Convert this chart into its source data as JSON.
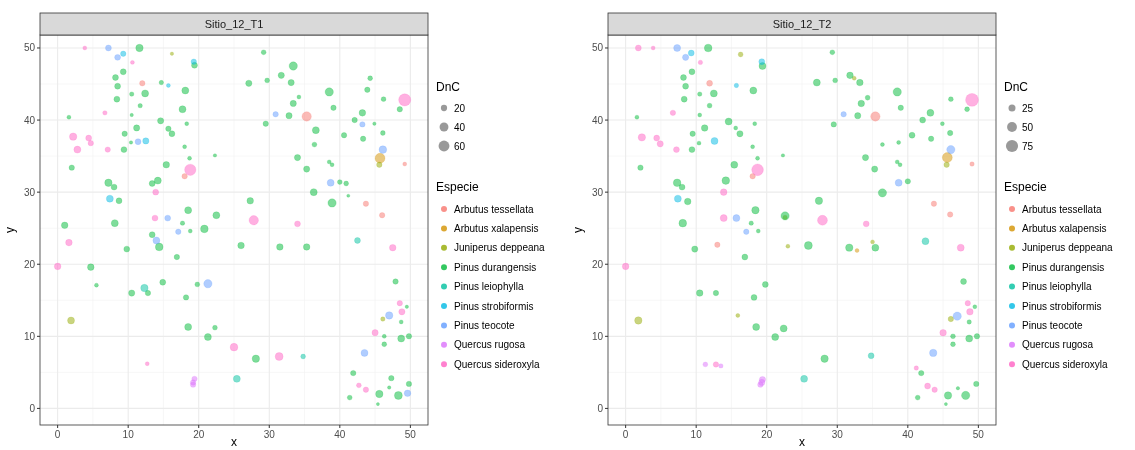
{
  "chart_data": [
    {
      "type": "bubble",
      "title": "Sitio_12_T1",
      "xlabel": "x",
      "ylabel": "y",
      "legend_title": "Especie",
      "annotations": [
        "DnC"
      ],
      "size_legend": [
        20,
        40,
        60
      ],
      "xlim": [
        -2.5,
        52.5
      ],
      "ylim": [
        -2.3,
        51.8
      ],
      "xticks": [
        0,
        10,
        20,
        30,
        40,
        50
      ],
      "yticks": [
        0,
        10,
        20,
        30,
        40,
        50
      ],
      "grid": true,
      "legend": "right",
      "series": [
        {
          "name": "Arbutus tessellata",
          "color": "#f8766d",
          "x": [
            12,
            18,
            35.3,
            43.7,
            46,
            49.2
          ],
          "values": [
            45.1,
            32.2,
            40.5,
            28.4,
            26.8,
            33.9
          ],
          "sizes": [
            15,
            15,
            45,
            15,
            15,
            8
          ]
        },
        {
          "name": "Arbutus xalapensis",
          "color": "#d39200",
          "x": [
            45.7
          ],
          "values": [
            34.7
          ],
          "sizes": [
            50
          ]
        },
        {
          "name": "Juniperus deppeana",
          "color": "#93aa00",
          "x": [
            16.2,
            1.9,
            45.6,
            46.1
          ],
          "values": [
            49.2,
            12.2,
            33.8,
            12.4
          ],
          "sizes": [
            6,
            25,
            15,
            10
          ]
        },
        {
          "name": "Pinus durangensis",
          "color": "#00ba38",
          "x": [
            11.6,
            19.4,
            9.3,
            8.2,
            14.7,
            8.5,
            10.5,
            12.4,
            18.1,
            8.4,
            11.7,
            17.7,
            1.6,
            10.5,
            14.6,
            18.3,
            11.2,
            15.7,
            16.2,
            9.5,
            10.4,
            9.4,
            18,
            18.7,
            22.3,
            2,
            15.4,
            7.2,
            8,
            13.4,
            14.2,
            8.7,
            18.5,
            22.5,
            17.7,
            18.8,
            20.8,
            1,
            8.1,
            13.4,
            14.4,
            9.8,
            26,
            16.9,
            4.7,
            5.5,
            10.5,
            12.8,
            14.9,
            19.8,
            18.2,
            18.5,
            22.3,
            21.3,
            29.2,
            33.4,
            31.7,
            27.1,
            29.7,
            33.1,
            44.3,
            38.5,
            43.9,
            34.2,
            46.2,
            33.4,
            39.1,
            48.5,
            32.8,
            29.5,
            43.2,
            42.1,
            44.9,
            36.6,
            46.1,
            40.6,
            43.3,
            36.4,
            34,
            38.5,
            38.9,
            35.3,
            40,
            40.9,
            36.3,
            41.2,
            27.3,
            38.9,
            31.5,
            35.3,
            47.9,
            49.5,
            48.7,
            46.3,
            48.7,
            49.8,
            46.3,
            28.1,
            41.9,
            47.3,
            49.8,
            47,
            45.6,
            48.3,
            41.4,
            45.4
          ],
          "values": [
            50,
            47.6,
            46.7,
            45.9,
            45.2,
            44.7,
            43.6,
            43.7,
            44.1,
            42.9,
            42,
            41.5,
            40.4,
            40.7,
            39.9,
            39.5,
            38.9,
            38.8,
            38.1,
            38.1,
            36.9,
            35.9,
            36.3,
            34.7,
            35.1,
            33.4,
            33.8,
            31.3,
            30.7,
            31.2,
            31.6,
            28.8,
            27.5,
            26.8,
            25.7,
            24.6,
            24.9,
            25.4,
            25.7,
            24.1,
            22.4,
            22.1,
            22.6,
            21,
            19.6,
            17.1,
            16,
            16,
            17.5,
            17.2,
            15.4,
            11.3,
            11.2,
            9.9,
            49.4,
            47.5,
            46.2,
            45.1,
            45.5,
            45.2,
            45.8,
            43.9,
            44.2,
            43.2,
            42.9,
            42.3,
            41.7,
            41.5,
            40.6,
            39.5,
            41,
            40,
            39.5,
            38.6,
            38.2,
            37.9,
            37.4,
            36.6,
            34.8,
            34.2,
            33.8,
            33.2,
            31.4,
            31.2,
            30,
            29.5,
            28.8,
            28.5,
            22.4,
            22.4,
            17.6,
            14.1,
            12,
            10,
            9.7,
            10,
            8.9,
            6.9,
            4.9,
            4.2,
            3.4,
            2.9,
            2,
            1.8,
            1.5,
            0.6
          ],
          "sizes": [
            28,
            18,
            18,
            18,
            10,
            18,
            10,
            25,
            25,
            18,
            10,
            25,
            8,
            6,
            20,
            8,
            20,
            15,
            18,
            15,
            6,
            18,
            8,
            8,
            6,
            15,
            22,
            28,
            18,
            18,
            25,
            18,
            25,
            25,
            10,
            8,
            30,
            22,
            25,
            18,
            30,
            18,
            22,
            15,
            22,
            8,
            20,
            15,
            18,
            12,
            15,
            25,
            12,
            25,
            12,
            35,
            20,
            20,
            12,
            20,
            12,
            35,
            15,
            8,
            12,
            20,
            15,
            15,
            20,
            15,
            22,
            15,
            6,
            25,
            12,
            15,
            15,
            12,
            20,
            8,
            8,
            20,
            12,
            12,
            25,
            5,
            22,
            35,
            22,
            22,
            15,
            6,
            8,
            8,
            25,
            15,
            12,
            28,
            15,
            15,
            15,
            6,
            28,
            32,
            12,
            5
          ]
        },
        {
          "name": "Pinus leiophylla",
          "color": "#00c19f",
          "x": [
            12.3,
            25.4,
            42.5,
            34.8
          ],
          "values": [
            16.7,
            4.1,
            23.3,
            7.2
          ],
          "sizes": [
            28,
            25,
            18,
            12
          ]
        },
        {
          "name": "Pinus strobiformis",
          "color": "#00b9e3",
          "x": [
            9.3,
            19.3,
            15.7,
            12.5,
            7.4
          ],
          "values": [
            49.2,
            48.1,
            44.8,
            37.1,
            29.1
          ],
          "sizes": [
            15,
            15,
            8,
            20,
            25
          ]
        },
        {
          "name": "Pinus teocote",
          "color": "#619cff",
          "x": [
            7.2,
            8.5,
            11.4,
            15.6,
            17.1,
            14,
            21.3,
            30.9,
            43.2,
            46.1,
            38.7,
            47,
            43.5,
            49.6
          ],
          "values": [
            50,
            48.7,
            37,
            26.4,
            24.5,
            23.3,
            17.3,
            40.8,
            39.4,
            35.9,
            31.3,
            12.9,
            7.7,
            2.1
          ],
          "sizes": [
            18,
            18,
            18,
            18,
            15,
            25,
            35,
            15,
            15,
            30,
            25,
            28,
            25,
            22
          ]
        },
        {
          "name": "Quercus rugosa",
          "color": "#db72fb",
          "x": [
            19.4,
            19.2,
            19.2
          ],
          "values": [
            4.1,
            3.6,
            3.3
          ],
          "sizes": [
            15,
            15,
            15
          ]
        },
        {
          "name": "Quercus sideroxyla",
          "color": "#ff61c3",
          "x": [
            3.85,
            10.6,
            6.7,
            2.2,
            4.4,
            4.7,
            2.8,
            7.1,
            18.8,
            13.9,
            13.8,
            1.6,
            0,
            25,
            12.7,
            49.2,
            27.8,
            34,
            47.5,
            48.5,
            48.8,
            45,
            31.4,
            42.7,
            43.7
          ],
          "values": [
            50,
            48,
            41,
            37.7,
            37.5,
            36.8,
            35.9,
            35.9,
            33.1,
            30,
            26.4,
            23,
            19.7,
            8.5,
            6.2,
            42.8,
            26.1,
            25.6,
            22.3,
            14.6,
            13.4,
            10.5,
            7.2,
            3.2,
            2.6
          ],
          "sizes": [
            8,
            8,
            10,
            28,
            18,
            15,
            25,
            15,
            65,
            18,
            18,
            22,
            22,
            30,
            8,
            75,
            45,
            18,
            22,
            15,
            20,
            20,
            32,
            12,
            15
          ]
        }
      ]
    },
    {
      "type": "bubble",
      "title": "Sitio_12_T2",
      "xlabel": "x",
      "ylabel": "y",
      "legend_title": "Especie",
      "annotations": [
        "DnC"
      ],
      "size_legend": [
        25,
        50,
        75
      ],
      "xlim": [
        -2.5,
        52.5
      ],
      "ylim": [
        -2.3,
        51.8
      ],
      "xticks": [
        0,
        10,
        20,
        30,
        40,
        50
      ],
      "yticks": [
        0,
        10,
        20,
        30,
        40,
        50
      ],
      "grid": true,
      "legend": "right",
      "series": [
        {
          "name": "Arbutus tessellata",
          "color": "#f8766d",
          "x": [
            11.9,
            18,
            13,
            35.4,
            43.7,
            46,
            49.1
          ],
          "values": [
            45.1,
            32.2,
            22.7,
            40.5,
            28.4,
            26.9,
            33.9
          ],
          "sizes": [
            18,
            15,
            15,
            45,
            15,
            15,
            10
          ]
        },
        {
          "name": "Arbutus xalapensis",
          "color": "#d39200",
          "x": [
            45.6,
            32.8
          ],
          "values": [
            34.8,
            21.9
          ],
          "sizes": [
            50,
            8
          ]
        },
        {
          "name": "Juniperus deppeana",
          "color": "#93aa00",
          "x": [
            16.3,
            22.6,
            23,
            1.8,
            15.9,
            32.4,
            45.5,
            35,
            46.1
          ],
          "values": [
            49.1,
            26.5,
            22.5,
            12.2,
            12.9,
            45.8,
            33.8,
            23.1,
            12.4
          ],
          "sizes": [
            12,
            10,
            8,
            28,
            8,
            8,
            15,
            8,
            15
          ]
        },
        {
          "name": "Pinus durangensis",
          "color": "#00ba38",
          "x": [
            11.7,
            19.4,
            9.4,
            8.2,
            8.5,
            10.5,
            12.5,
            18.1,
            8.3,
            11.9,
            1.6,
            10.5,
            14.6,
            18.3,
            11.2,
            15.6,
            16.2,
            9.5,
            10.4,
            9.4,
            18,
            18.7,
            22.3,
            2.1,
            15.4,
            7.3,
            8,
            14.2,
            8.8,
            18.4,
            22.6,
            17.8,
            18.8,
            8.1,
            25.9,
            9.8,
            16.9,
            19.8,
            10.5,
            12.8,
            18.2,
            18.5,
            22.4,
            21.2,
            29.3,
            31.8,
            33.2,
            27.1,
            29.7,
            38.5,
            34.3,
            33.4,
            46.1,
            39,
            48.4,
            32.9,
            43.2,
            42.1,
            44.9,
            29.5,
            40.6,
            43.3,
            46,
            36.4,
            38.7,
            34,
            38.5,
            38.9,
            35.3,
            40,
            36.4,
            27.4,
            31.7,
            35.4,
            47.9,
            49.5,
            48.7,
            46.4,
            48.7,
            49.8,
            46.4,
            28.2,
            41.9,
            49.7,
            47.1,
            45.7,
            48.2,
            41.4,
            45.4
          ],
          "values": [
            50,
            47.5,
            46.7,
            45.9,
            44.7,
            43.6,
            43.7,
            44.1,
            42.9,
            42,
            40.4,
            40.7,
            39.8,
            39.5,
            38.9,
            38.9,
            38.1,
            38.1,
            36.8,
            35.9,
            36.3,
            34.7,
            35.1,
            33.4,
            33.8,
            31.3,
            30.7,
            31.6,
            28.7,
            27.5,
            26.7,
            25.7,
            24.6,
            25.7,
            22.6,
            22.1,
            21,
            17.2,
            16,
            16,
            15.4,
            11.3,
            11.1,
            9.9,
            49.4,
            46.2,
            45.2,
            45.2,
            45.5,
            43.9,
            43.1,
            42.3,
            42.9,
            41.7,
            41.5,
            40.6,
            41,
            40,
            39.5,
            39.4,
            37.9,
            37.4,
            38.2,
            36.6,
            36.9,
            34.8,
            34.2,
            33.8,
            33.2,
            31.5,
            29.9,
            28.8,
            22.3,
            22.3,
            17.6,
            14.1,
            12,
            10,
            9.7,
            10,
            8.9,
            6.9,
            4.9,
            3.4,
            2.8,
            1.8,
            1.8,
            1.5,
            0.6
          ],
          "sizes": [
            30,
            25,
            18,
            18,
            18,
            10,
            25,
            25,
            18,
            12,
            8,
            8,
            25,
            8,
            22,
            8,
            20,
            15,
            8,
            18,
            8,
            8,
            6,
            15,
            25,
            30,
            18,
            30,
            22,
            28,
            35,
            10,
            8,
            30,
            32,
            20,
            18,
            18,
            22,
            15,
            18,
            25,
            25,
            25,
            12,
            22,
            22,
            25,
            12,
            35,
            12,
            22,
            12,
            15,
            12,
            20,
            25,
            18,
            8,
            15,
            18,
            15,
            15,
            8,
            8,
            20,
            8,
            8,
            20,
            15,
            35,
            28,
            28,
            25,
            18,
            8,
            10,
            12,
            25,
            15,
            12,
            28,
            15,
            15,
            6,
            28,
            35,
            12,
            5
          ]
        },
        {
          "name": "Pinus leiophylla",
          "color": "#00c19f",
          "x": [
            25.3,
            42.5,
            34.8
          ],
          "values": [
            4.1,
            23.2,
            7.3
          ],
          "sizes": [
            25,
            25,
            18
          ]
        },
        {
          "name": "Pinus strobiformis",
          "color": "#00b9e3",
          "x": [
            9.3,
            19.3,
            15.7,
            12.6,
            7.4
          ],
          "values": [
            49.3,
            48.1,
            44.8,
            37.1,
            29.1
          ],
          "sizes": [
            18,
            18,
            10,
            25,
            25
          ]
        },
        {
          "name": "Pinus teocote",
          "color": "#619cff",
          "x": [
            7.3,
            8.5,
            15.7,
            17.1,
            30.9,
            46.1,
            38.7,
            47,
            43.6
          ],
          "values": [
            50,
            48.7,
            26.4,
            24.5,
            40.8,
            35.9,
            31.3,
            12.8,
            7.7
          ],
          "sizes": [
            25,
            20,
            25,
            15,
            15,
            35,
            25,
            35,
            28
          ]
        },
        {
          "name": "Quercus rugosa",
          "color": "#db72fb",
          "x": [
            11.3,
            13.5,
            19.4,
            19.3,
            19.1
          ],
          "values": [
            6.1,
            5.9,
            4,
            3.6,
            3.3
          ],
          "sizes": [
            12,
            10,
            20,
            20,
            15
          ]
        },
        {
          "name": "Quercus sideroxyla",
          "color": "#ff61c3",
          "x": [
            1.8,
            3.9,
            10.6,
            6.7,
            2.3,
            4.4,
            4.9,
            7.2,
            18.7,
            13.9,
            13.9,
            0,
            12.8,
            49.1,
            27.9,
            34.1,
            47.5,
            48.5,
            48.8,
            45,
            41.2,
            42.8,
            43.8
          ],
          "values": [
            50,
            50,
            48,
            41,
            37.6,
            37.5,
            36.7,
            35.9,
            33.1,
            30,
            26.4,
            19.7,
            6.1,
            42.8,
            26.1,
            25.6,
            22.3,
            14.6,
            13.4,
            10.5,
            5.6,
            3.1,
            2.6
          ],
          "sizes": [
            18,
            8,
            10,
            15,
            28,
            18,
            20,
            18,
            70,
            22,
            25,
            22,
            15,
            85,
            50,
            18,
            25,
            15,
            22,
            22,
            10,
            18,
            15
          ]
        }
      ]
    }
  ]
}
